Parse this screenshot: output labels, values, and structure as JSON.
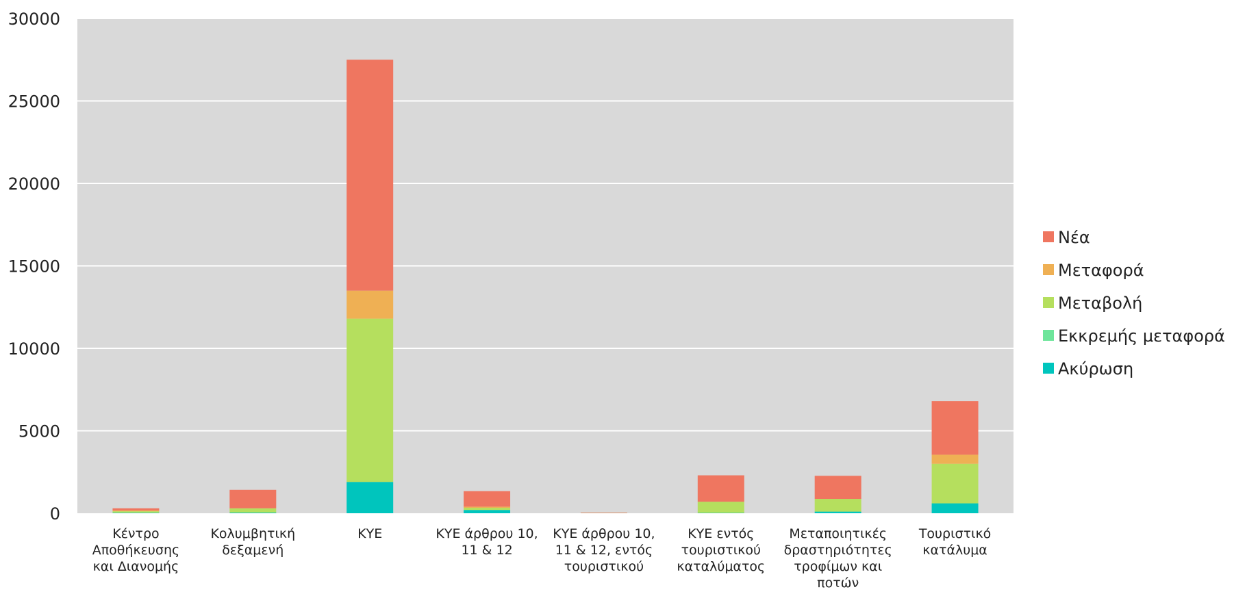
{
  "chart_data": {
    "type": "bar",
    "stacked": true,
    "ylim": [
      0,
      30000
    ],
    "yticks": [
      0,
      5000,
      10000,
      15000,
      20000,
      25000,
      30000
    ],
    "grid": true,
    "legend_position": "right",
    "categories": [
      [
        "Κέντρο",
        "Αποθήκευσης",
        "και Διανομής"
      ],
      [
        "Κολυμβητική",
        "δεξαμενή"
      ],
      [
        "ΚΥΕ"
      ],
      [
        "ΚΥΕ άρθρου 10,",
        "11 & 12"
      ],
      [
        "ΚΥΕ άρθρου 10,",
        "11 & 12, εντός",
        "τουριστικού"
      ],
      [
        "ΚΥΕ εντός",
        "τουριστικού",
        "καταλύματος"
      ],
      [
        "Μεταποιητικές",
        "δραστηριότητες",
        "τροφίμων και",
        "ποτών"
      ],
      [
        "Τουριστικό",
        "κατάλυμα"
      ]
    ],
    "series": [
      {
        "name": "Ακύρωση",
        "color": "#00c5bd",
        "values": [
          30,
          40,
          1900,
          200,
          5,
          20,
          100,
          600
        ]
      },
      {
        "name": "Εκκρεμής μεταφορά",
        "color": "#6ee59b",
        "values": [
          0,
          0,
          0,
          0,
          0,
          0,
          0,
          0
        ]
      },
      {
        "name": "Μεταβολή",
        "color": "#b5df5e",
        "values": [
          90,
          260,
          9900,
          130,
          10,
          680,
          770,
          2400
        ]
      },
      {
        "name": "Μεταφορά",
        "color": "#efb054",
        "values": [
          50,
          0,
          1700,
          70,
          0,
          0,
          0,
          550
        ]
      },
      {
        "name": "Νέα",
        "color": "#ef7660",
        "values": [
          130,
          1120,
          14000,
          940,
          30,
          1600,
          1400,
          3250
        ]
      }
    ],
    "legend_order": [
      "Νέα",
      "Μεταφορά",
      "Μεταβολή",
      "Εκκρεμής μεταφορά",
      "Ακύρωση"
    ]
  }
}
